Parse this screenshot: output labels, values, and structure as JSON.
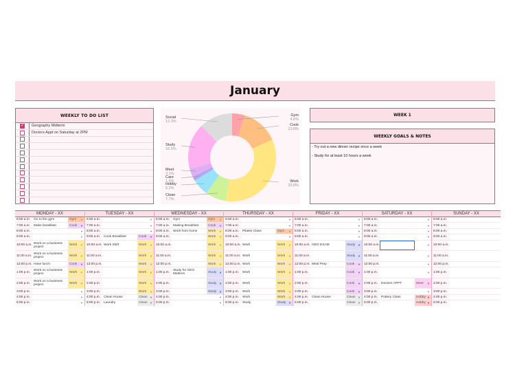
{
  "title": "January",
  "todo": {
    "header": "WEEKLY TO DO LIST",
    "items": [
      {
        "text": "Geography Midterm",
        "checked": true
      },
      {
        "text": "Doctors Appt on Saturday at 2PM",
        "checked": false
      },
      {
        "text": "",
        "checked": false
      },
      {
        "text": "",
        "checked": false
      },
      {
        "text": "",
        "checked": false
      },
      {
        "text": "",
        "checked": false
      },
      {
        "text": "",
        "checked": false
      },
      {
        "text": "",
        "checked": false
      },
      {
        "text": "",
        "checked": false
      },
      {
        "text": "",
        "checked": false
      },
      {
        "text": "",
        "checked": false
      },
      {
        "text": "",
        "checked": false
      }
    ]
  },
  "chart_data": {
    "type": "pie",
    "subtype": "donut",
    "title": "",
    "categories": [
      "Gym",
      "Cook",
      "Work",
      "Clean",
      "Hobby",
      "Care",
      "Meet",
      "Study",
      "Social"
    ],
    "values": [
      4.6,
      13.8,
      33.8,
      7.7,
      6.2,
      1.5,
      3.1,
      16.9,
      12.3
    ],
    "labels": [
      "4.6%",
      "13.8%",
      "33.8%",
      "7.7%",
      "6.2%",
      "1.5%",
      "3.1%",
      "16.9%",
      "12.3%"
    ],
    "colors": [
      "#ffa3a8",
      "#ffbf80",
      "#ffe680",
      "#ccf29a",
      "#99e3fa",
      "#b3a6f5",
      "#dcb0f2",
      "#ffb0f0",
      "#dcdcdc"
    ]
  },
  "week": {
    "label": "WEEK 1"
  },
  "goals": {
    "header": "WEEKLY GOALS & NOTES",
    "items": [
      "- Try out a new dinner recipe once a week",
      "- Study for at least 10 hours a week"
    ]
  },
  "tag_colors": {
    "Gym": "#ffc9a3",
    "Cook": "#f2d4f7",
    "Work": "#ffeaa0",
    "Study": "#dcdcfb",
    "Clean": "#ececec",
    "Meet": "#fbd2f2",
    "Social": "#d6f7c8",
    "Hobby": "#ffcfcf"
  },
  "tag_arrow_colors": {
    "Gym": "#d97a2b",
    "Cook": "#a02bd9",
    "Work": "#c9a400",
    "Study": "#3a4fd9",
    "Clean": "#777777",
    "Meet": "#d92bb0",
    "Social": "#2bb02b",
    "Hobby": "#d92b2b"
  },
  "times": [
    "6:00 a.m.",
    "7:00 a.m.",
    "8:00 a.m.",
    "9:00 a.m.",
    "10:00 a.m.",
    "11:00 a.m.",
    "12:00 p.m.",
    "1:00 p.m.",
    "2:00 p.m.",
    "3:00 p.m.",
    "4:00 p.m.",
    "5:00 p.m.",
    "6:00 p.m."
  ],
  "days": [
    {
      "name": "MONDAY - XX",
      "entries": [
        {
          "task": "Go to the gym",
          "tag": "Gym"
        },
        {
          "task": "Make breakfast",
          "tag": "Cook"
        },
        {
          "task": "",
          "tag": ""
        },
        {
          "task": "",
          "tag": ""
        },
        {
          "task": "Work on a business project",
          "tag": "Work"
        },
        {
          "task": "Work on a business project",
          "tag": "Work"
        },
        {
          "task": "Have lunch",
          "tag": "Cook"
        },
        {
          "task": "Work on a business project",
          "tag": "Work"
        },
        {
          "task": "Work on a business project",
          "tag": "Work"
        },
        {
          "task": "",
          "tag": ""
        },
        {
          "task": "",
          "tag": ""
        },
        {
          "task": "",
          "tag": ""
        },
        {
          "task": "Clean up the garage",
          "tag": "Clean"
        }
      ]
    },
    {
      "name": "TUESDAY - XX",
      "entries": [
        {
          "task": "",
          "tag": ""
        },
        {
          "task": "",
          "tag": ""
        },
        {
          "task": "",
          "tag": ""
        },
        {
          "task": "Cook Breakfast",
          "tag": "Cook"
        },
        {
          "task": "Work Shift",
          "tag": "Work"
        },
        {
          "task": "",
          "tag": "Work"
        },
        {
          "task": "",
          "tag": "Work"
        },
        {
          "task": "",
          "tag": "Work"
        },
        {
          "task": "",
          "tag": "Work"
        },
        {
          "task": "",
          "tag": "Work"
        },
        {
          "task": "Clean House",
          "tag": "Clean"
        },
        {
          "task": "Laundry",
          "tag": "Clean"
        },
        {
          "task": "Group Project Meeting",
          "tag": "Meet"
        }
      ]
    },
    {
      "name": "WEDNESDAY - XX",
      "entries": [
        {
          "task": "Gym",
          "tag": "Gym"
        },
        {
          "task": "Making Breakfast",
          "tag": "Cook"
        },
        {
          "task": "Work from home",
          "tag": "Work"
        },
        {
          "task": "",
          "tag": "Work"
        },
        {
          "task": "",
          "tag": "Work"
        },
        {
          "task": "",
          "tag": "Work"
        },
        {
          "task": "",
          "tag": "Work"
        },
        {
          "task": "Study for GEO Midterm",
          "tag": "Study"
        },
        {
          "task": "",
          "tag": "Study"
        },
        {
          "task": "",
          "tag": "Study"
        },
        {
          "task": "",
          "tag": ""
        },
        {
          "task": "",
          "tag": ""
        },
        {
          "task": "",
          "tag": ""
        }
      ]
    },
    {
      "name": "THURSDAY - XX",
      "entries": [
        {
          "task": "",
          "tag": ""
        },
        {
          "task": "",
          "tag": ""
        },
        {
          "task": "Pilates Class",
          "tag": "Gym"
        },
        {
          "task": "",
          "tag": ""
        },
        {
          "task": "Work",
          "tag": "Work"
        },
        {
          "task": "Work",
          "tag": "Work"
        },
        {
          "task": "Work",
          "tag": "Work"
        },
        {
          "task": "Work",
          "tag": "Work"
        },
        {
          "task": "Work",
          "tag": "Work"
        },
        {
          "task": "Work",
          "tag": "Work"
        },
        {
          "task": "Work",
          "tag": "Work"
        },
        {
          "task": "Study",
          "tag": "Study"
        },
        {
          "task": "Study",
          "tag": "Study"
        }
      ]
    },
    {
      "name": "FRIDAY - XX",
      "entries": [
        {
          "task": "",
          "tag": ""
        },
        {
          "task": "",
          "tag": ""
        },
        {
          "task": "",
          "tag": ""
        },
        {
          "task": "",
          "tag": ""
        },
        {
          "task": "GEO EXAM",
          "tag": "Study"
        },
        {
          "task": "",
          "tag": "Study"
        },
        {
          "task": "Meal Prep",
          "tag": "Cook"
        },
        {
          "task": "",
          "tag": "Cook"
        },
        {
          "task": "",
          "tag": "Cook"
        },
        {
          "task": "",
          "tag": "Cook"
        },
        {
          "task": "Clean House",
          "tag": "Clean"
        },
        {
          "task": "",
          "tag": "Clean"
        },
        {
          "task": "Drinks with Friends",
          "tag": "Social"
        }
      ]
    },
    {
      "name": "SATURDAY - XX",
      "entries": [
        {
          "task": "",
          "tag": ""
        },
        {
          "task": "",
          "tag": ""
        },
        {
          "task": "",
          "tag": ""
        },
        {
          "task": "",
          "tag": ""
        },
        {
          "task": "",
          "tag": ""
        },
        {
          "task": "",
          "tag": ""
        },
        {
          "task": "",
          "tag": ""
        },
        {
          "task": "",
          "tag": ""
        },
        {
          "task": "Doctors APPT",
          "tag": "Meet"
        },
        {
          "task": "",
          "tag": ""
        },
        {
          "task": "Pottery Class",
          "tag": "Hobby"
        },
        {
          "task": "",
          "tag": "Hobby"
        },
        {
          "task": "",
          "tag": "Hobby"
        }
      ]
    },
    {
      "name": "SUNDAY - XX",
      "entries": [
        {
          "task": "",
          "tag": null
        },
        {
          "task": "",
          "tag": null
        },
        {
          "task": "",
          "tag": null
        },
        {
          "task": "",
          "tag": null
        },
        {
          "task": "",
          "tag": null
        },
        {
          "task": "",
          "tag": null
        },
        {
          "task": "",
          "tag": null
        },
        {
          "task": "",
          "tag": null
        },
        {
          "task": "",
          "tag": null
        },
        {
          "task": "",
          "tag": null
        },
        {
          "task": "",
          "tag": null
        },
        {
          "task": "",
          "tag": null
        },
        {
          "task": "",
          "tag": null
        }
      ]
    }
  ],
  "tall_rows": [
    4,
    5,
    7,
    8,
    12
  ],
  "selected_cell": {
    "day": 5,
    "row": 4
  }
}
